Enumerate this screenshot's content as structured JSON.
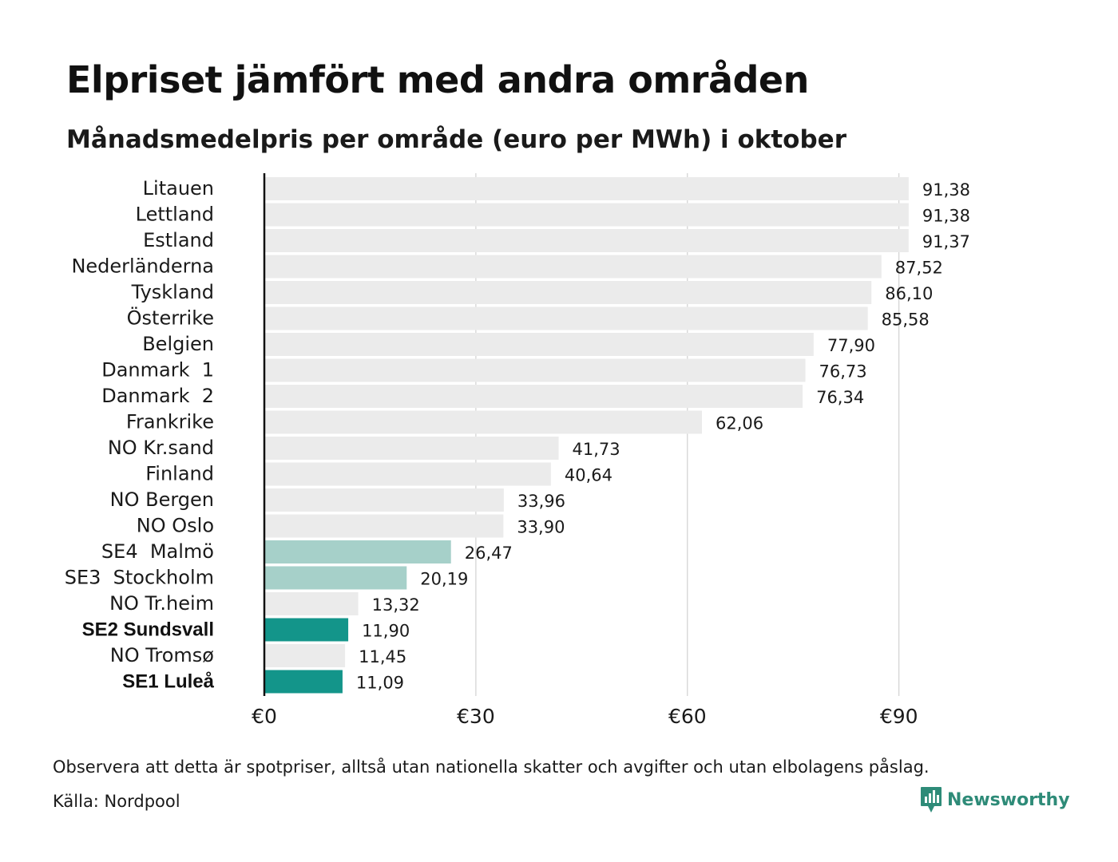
{
  "header": {
    "title": "Elpriset jämfört med andra områden",
    "subtitle": "Månadsmedelpris per område (euro per MWh) i oktober"
  },
  "footer": {
    "note": "Observera att detta är spotpriser, alltså utan nationella skatter och avgifter och utan elbolagens påslag.",
    "source": "Källa: Nordpool",
    "brand": "Newsworthy"
  },
  "colors": {
    "bar_default": "#ebebeb",
    "bar_highlight_light": "#a6d0c9",
    "bar_highlight_dark": "#13958a",
    "gridline": "#c8c8c8",
    "axis": "#111111",
    "brand": "#2e8b78"
  },
  "chart_data": {
    "type": "bar",
    "orientation": "horizontal",
    "title": "Elpriset jämfört med andra områden",
    "subtitle": "Månadsmedelpris per område (euro per MWh) i oktober",
    "xlabel": "",
    "ylabel": "",
    "xlim": [
      0,
      100
    ],
    "grid": true,
    "ticks": [
      {
        "value": 0,
        "label": "€0"
      },
      {
        "value": 30,
        "label": "€30"
      },
      {
        "value": 60,
        "label": "€60"
      },
      {
        "value": 90,
        "label": "€90"
      }
    ],
    "bars": [
      {
        "category": "Litauen",
        "value": 91.38,
        "label": "91,38",
        "style": "default",
        "bold": false
      },
      {
        "category": "Lettland",
        "value": 91.38,
        "label": "91,38",
        "style": "default",
        "bold": false
      },
      {
        "category": "Estland",
        "value": 91.37,
        "label": "91,37",
        "style": "default",
        "bold": false
      },
      {
        "category": "Nederländerna",
        "value": 87.52,
        "label": "87,52",
        "style": "default",
        "bold": false
      },
      {
        "category": "Tyskland",
        "value": 86.1,
        "label": "86,10",
        "style": "default",
        "bold": false
      },
      {
        "category": "Österrike",
        "value": 85.58,
        "label": "85,58",
        "style": "default",
        "bold": false
      },
      {
        "category": "Belgien",
        "value": 77.9,
        "label": "77,90",
        "style": "default",
        "bold": false
      },
      {
        "category": "Danmark  1",
        "value": 76.73,
        "label": "76,73",
        "style": "default",
        "bold": false
      },
      {
        "category": "Danmark  2",
        "value": 76.34,
        "label": "76,34",
        "style": "default",
        "bold": false
      },
      {
        "category": "Frankrike",
        "value": 62.06,
        "label": "62,06",
        "style": "default",
        "bold": false
      },
      {
        "category": "NO Kr.sand",
        "value": 41.73,
        "label": "41,73",
        "style": "default",
        "bold": false
      },
      {
        "category": "Finland",
        "value": 40.64,
        "label": "40,64",
        "style": "default",
        "bold": false
      },
      {
        "category": "NO Bergen",
        "value": 33.96,
        "label": "33,96",
        "style": "default",
        "bold": false
      },
      {
        "category": "NO Oslo",
        "value": 33.9,
        "label": "33,90",
        "style": "default",
        "bold": false
      },
      {
        "category": "SE4  Malmö",
        "value": 26.47,
        "label": "26,47",
        "style": "highlight_light",
        "bold": false
      },
      {
        "category": "SE3  Stockholm",
        "value": 20.19,
        "label": "20,19",
        "style": "highlight_light",
        "bold": false
      },
      {
        "category": "NO Tr.heim",
        "value": 13.32,
        "label": "13,32",
        "style": "default",
        "bold": false
      },
      {
        "category": "SE2 Sundsvall",
        "value": 11.9,
        "label": "11,90",
        "style": "highlight_dark",
        "bold": true
      },
      {
        "category": "NO Tromsø",
        "value": 11.45,
        "label": "11,45",
        "style": "default",
        "bold": false
      },
      {
        "category": "SE1 Luleå",
        "value": 11.09,
        "label": "11,09",
        "style": "highlight_dark",
        "bold": true
      }
    ]
  }
}
